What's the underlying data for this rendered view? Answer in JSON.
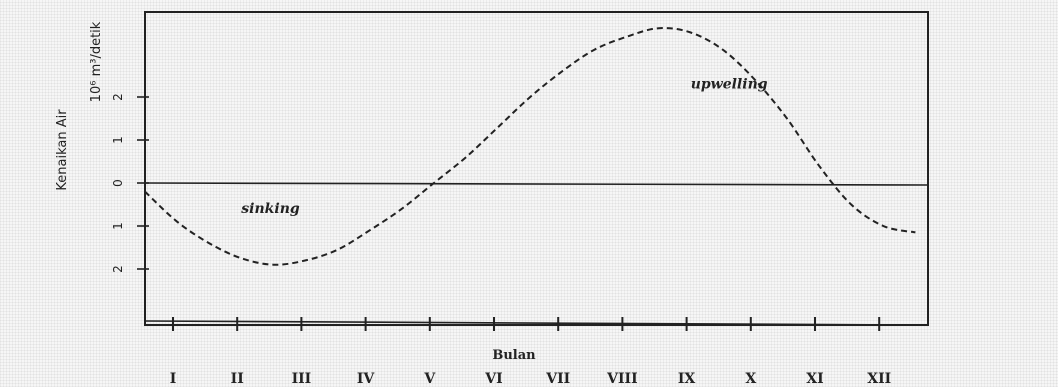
{
  "chart_data": {
    "type": "line",
    "title": "",
    "xlabel": "Bulan",
    "ylabel": "Kenaikan Air",
    "yunit": "10⁶ m³/detik",
    "categories": [
      "I",
      "II",
      "III",
      "IV",
      "V",
      "VI",
      "VII",
      "VIII",
      "IX",
      "X",
      "XI",
      "XII"
    ],
    "y_tick_labels": [
      "2",
      "1",
      "0",
      "1",
      "2"
    ],
    "y_tick_values": [
      2,
      1,
      0,
      -1,
      -2
    ],
    "ylim": [
      -3.2,
      3.9
    ],
    "x": [
      0.0,
      0.5,
      1.0,
      1.5,
      2.0,
      2.5,
      3.0,
      3.5,
      4.0,
      4.5,
      5.0,
      5.5,
      6.0,
      6.5,
      7.0,
      7.5,
      8.0,
      8.5,
      9.0,
      9.5,
      10.0,
      10.5,
      11.0,
      11.5,
      12.0
    ],
    "values": [
      -0.2,
      -0.9,
      -1.4,
      -1.75,
      -1.9,
      -1.8,
      -1.55,
      -1.1,
      -0.6,
      0.0,
      0.6,
      1.3,
      2.0,
      2.6,
      3.1,
      3.4,
      3.6,
      3.5,
      3.1,
      2.4,
      1.5,
      0.4,
      -0.5,
      -1.0,
      -1.15
    ],
    "line_style": "dashed",
    "zero_line": true,
    "grid": false,
    "annotations": [
      {
        "text": "upwelling",
        "x": 8.5,
        "y": 2.2
      },
      {
        "text": "sinking",
        "x": 1.5,
        "y": -0.7
      }
    ]
  }
}
